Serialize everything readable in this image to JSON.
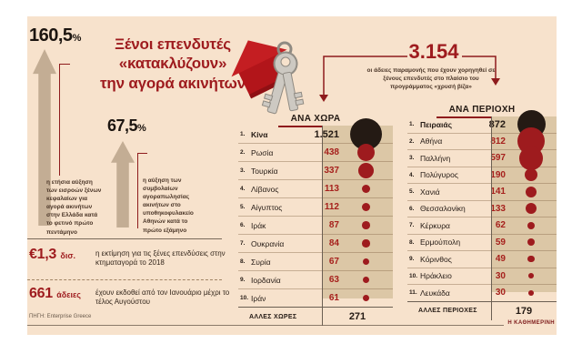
{
  "infographic": {
    "title": "Ξένοι επενδυτές\n«κατακλύζουν»\nτην αγορά ακινήτων",
    "hero_icon": "house-keychain-keys-icon",
    "stats": [
      {
        "value": "160,5",
        "unit": "%",
        "caption": "η ετήσια αύξηση των εισροών ξένων κεφαλαίων για αγορά ακινήτων στην Ελλάδα κατά το φετινό πρώτο πεντάμηνο"
      },
      {
        "value": "67,5",
        "unit": "%",
        "caption": "η αύξηση των συμβολαίων αγοραπωλησίας ακινήτων στο υποθηκοφυλακείο Αθηνών κατά το πρώτο εξάμηνο"
      }
    ],
    "permits": {
      "value": "3.154",
      "caption": "οι άδειες παραμονής που έχουν χορηγηθεί σε ξένους επενδυτές στο πλαίσιο του προγράμματος «χρυσή βίζα»"
    },
    "kpis": [
      {
        "value": "€1,3",
        "unit": "δισ.",
        "caption": "η εκτίμηση για τις ξένες επενδύσεις στην κτηματαγορά το 2018"
      },
      {
        "value": "661",
        "unit": "άδειες",
        "caption": "έχουν εκδοθεί από τον Ιανουάριο μέχρι το τέλος Αυγούστου"
      }
    ],
    "source": "ΠΗΓΗ: Enterprise Greece",
    "brand": "Η ΚΑΘΗΜΕΡΙΝΗ",
    "colors": {
      "panel_bg": "#f7e2cc",
      "strip_bg": "#dcc7a6",
      "accent_red": "#9e1b1e",
      "line_red": "#8e1b1c",
      "black": "#241a14",
      "arrow_taupe": "#c3ad94"
    }
  },
  "chart_data": [
    {
      "type": "table",
      "title": "ΑΝΑ ΧΩΡΑ",
      "symbol": "proportional-circle",
      "categories": [
        "Κίνα",
        "Ρωσία",
        "Τουρκία",
        "Λίβανος",
        "Αίγυπτος",
        "Ιράκ",
        "Ουκρανία",
        "Συρία",
        "Ιορδανία",
        "Ιράν"
      ],
      "values": [
        1521,
        438,
        337,
        113,
        112,
        87,
        84,
        67,
        63,
        61
      ],
      "value_labels": [
        "1.521",
        "438",
        "337",
        "113",
        "112",
        "87",
        "84",
        "67",
        "63",
        "61"
      ],
      "footer_label": "ΑΛΛΕΣ ΧΩΡΕΣ",
      "footer_value": "271"
    },
    {
      "type": "table",
      "title": "ΑΝΑ ΠΕΡΙΟΧΗ",
      "symbol": "proportional-circle",
      "categories": [
        "Πειραιάς",
        "Αθήνα",
        "Παλλήνη",
        "Πολύγυρος",
        "Χανιά",
        "Θεσσαλονίκη",
        "Κέρκυρα",
        "Ερμούπολη",
        "Κόρινθος",
        "Ηράκλειο",
        "Λευκάδα"
      ],
      "values": [
        872,
        812,
        597,
        190,
        141,
        133,
        62,
        59,
        49,
        30,
        30
      ],
      "value_labels": [
        "872",
        "812",
        "597",
        "190",
        "141",
        "133",
        "62",
        "59",
        "49",
        "30",
        "30"
      ],
      "footer_label": "ΑΛΛΕΣ ΠΕΡΙΟΧΕΣ",
      "footer_value": "179"
    }
  ]
}
